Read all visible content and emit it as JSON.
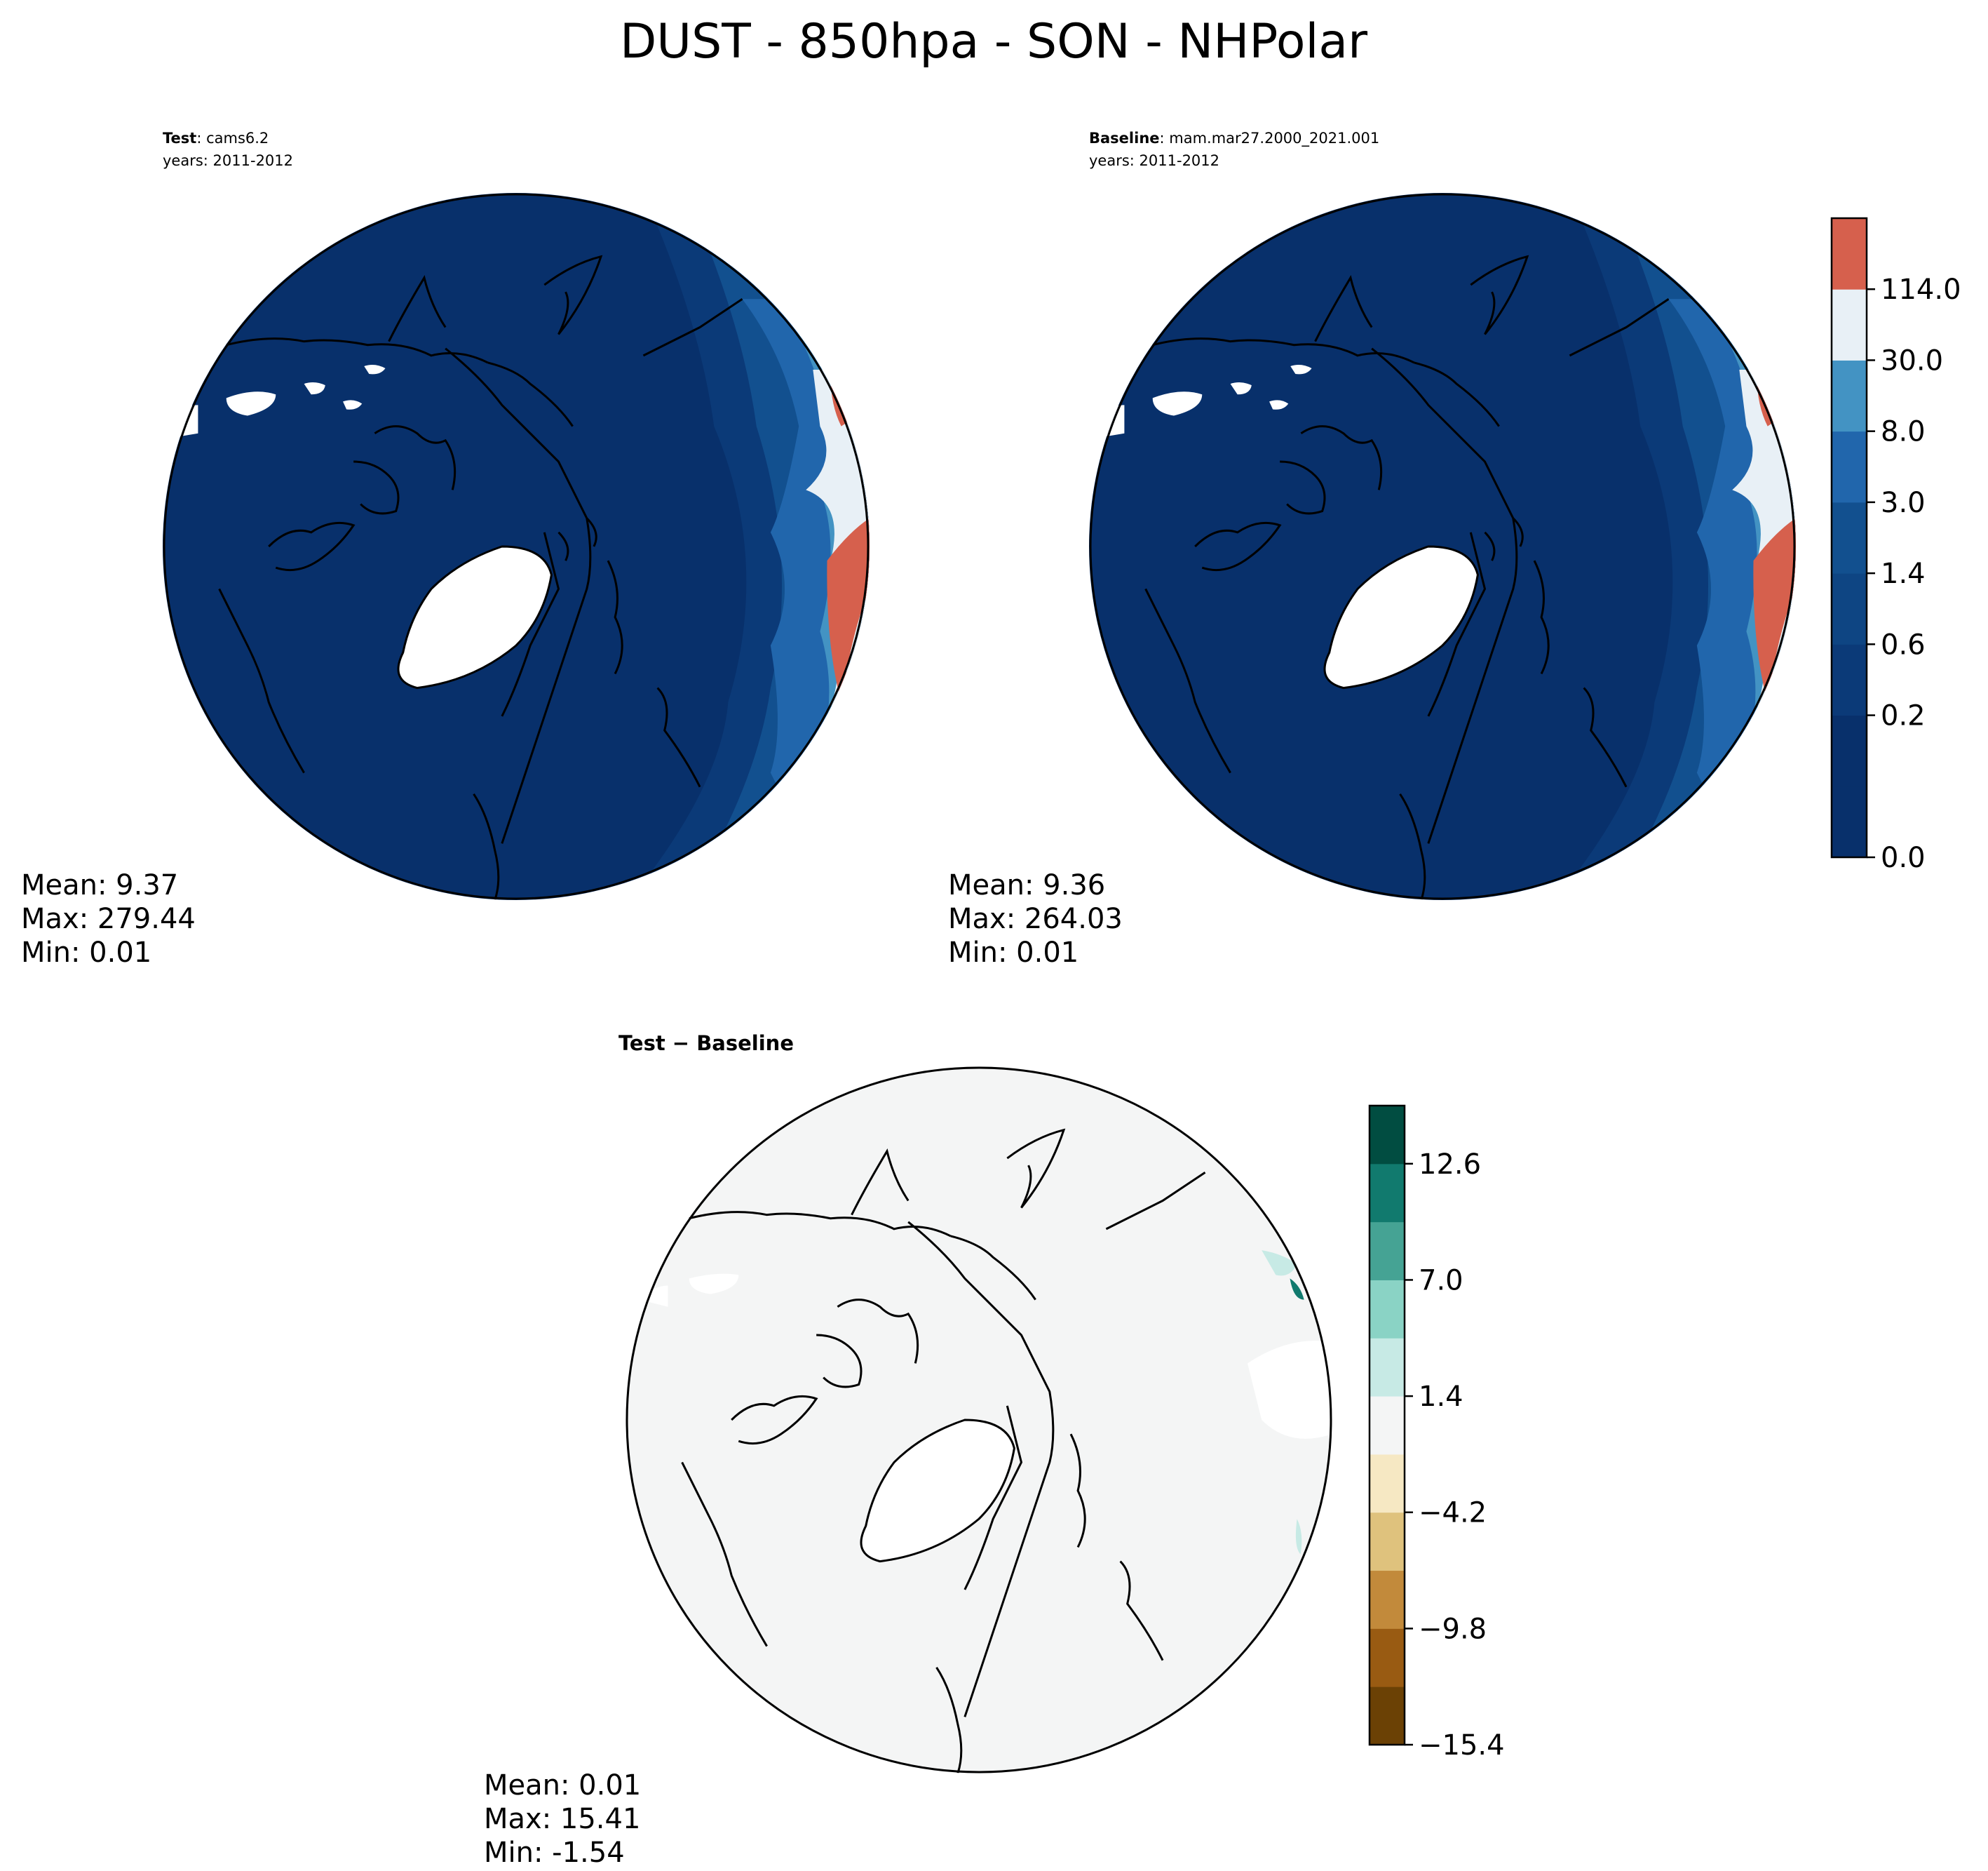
{
  "figure": {
    "title": "DUST - 850hpa - SON - NHPolar"
  },
  "panels": [
    {
      "id": "test",
      "label_bold": "Test",
      "label_rest": ": cams6.2",
      "years": "years: 2011-2012",
      "stats": {
        "mean": "Mean:  9.37",
        "max": "Max: 279.44",
        "min": "Min:  0.01"
      }
    },
    {
      "id": "baseline",
      "label_bold": "Baseline",
      "label_rest": ": mam.mar27.2000_2021.001",
      "years": "years: 2011-2012",
      "stats": {
        "mean": "Mean:  9.36",
        "max": "Max: 264.03",
        "min": "Min:  0.01"
      }
    },
    {
      "id": "diff",
      "label": "Test − Baseline",
      "stats": {
        "mean": "Mean:  0.01",
        "max": "Max: 15.41",
        "min": "Min: -1.54"
      }
    }
  ],
  "colorbars": {
    "main": {
      "colors": [
        "#08306b",
        "#08306b",
        "#0b3a78",
        "#0e4583",
        "#12508f",
        "#2166ac",
        "#4393c3",
        "#e8f0f6",
        "#d6604d"
      ],
      "ticks": [
        "0.0",
        "0.2",
        "0.6",
        "1.4",
        "3.0",
        "8.0",
        "30.0",
        "114.0"
      ]
    },
    "diff": {
      "colors": [
        "#6b4105",
        "#995b12",
        "#c28a3b",
        "#dfc27d",
        "#f6e8c3",
        "#f4f5f5",
        "#c7eae5",
        "#8ad3c5",
        "#45a394",
        "#117a6e",
        "#014d41"
      ],
      "ticks": [
        "−15.4",
        "−9.8",
        "−4.2",
        "1.4",
        "7.0",
        "12.6"
      ]
    }
  },
  "chart_data": [
    {
      "type": "heatmap",
      "title": "Test: cams6.2",
      "subtitle": "years: 2011-2012",
      "projection": "north polar stereographic",
      "mean": 9.37,
      "max": 279.44,
      "min": 0.01,
      "levels": [
        0.0,
        0.2,
        0.6,
        1.4,
        3.0,
        8.0,
        30.0,
        114.0
      ]
    },
    {
      "type": "heatmap",
      "title": "Baseline: mam.mar27.2000_2021.001",
      "subtitle": "years: 2011-2012",
      "projection": "north polar stereographic",
      "mean": 9.36,
      "max": 264.03,
      "min": 0.01,
      "levels": [
        0.0,
        0.2,
        0.6,
        1.4,
        3.0,
        8.0,
        30.0,
        114.0
      ]
    },
    {
      "type": "heatmap",
      "title": "Test − Baseline",
      "projection": "north polar stereographic",
      "mean": 0.01,
      "max": 15.41,
      "min": -1.54,
      "levels": [
        -15.4,
        -9.8,
        -4.2,
        1.4,
        7.0,
        12.6
      ]
    }
  ]
}
